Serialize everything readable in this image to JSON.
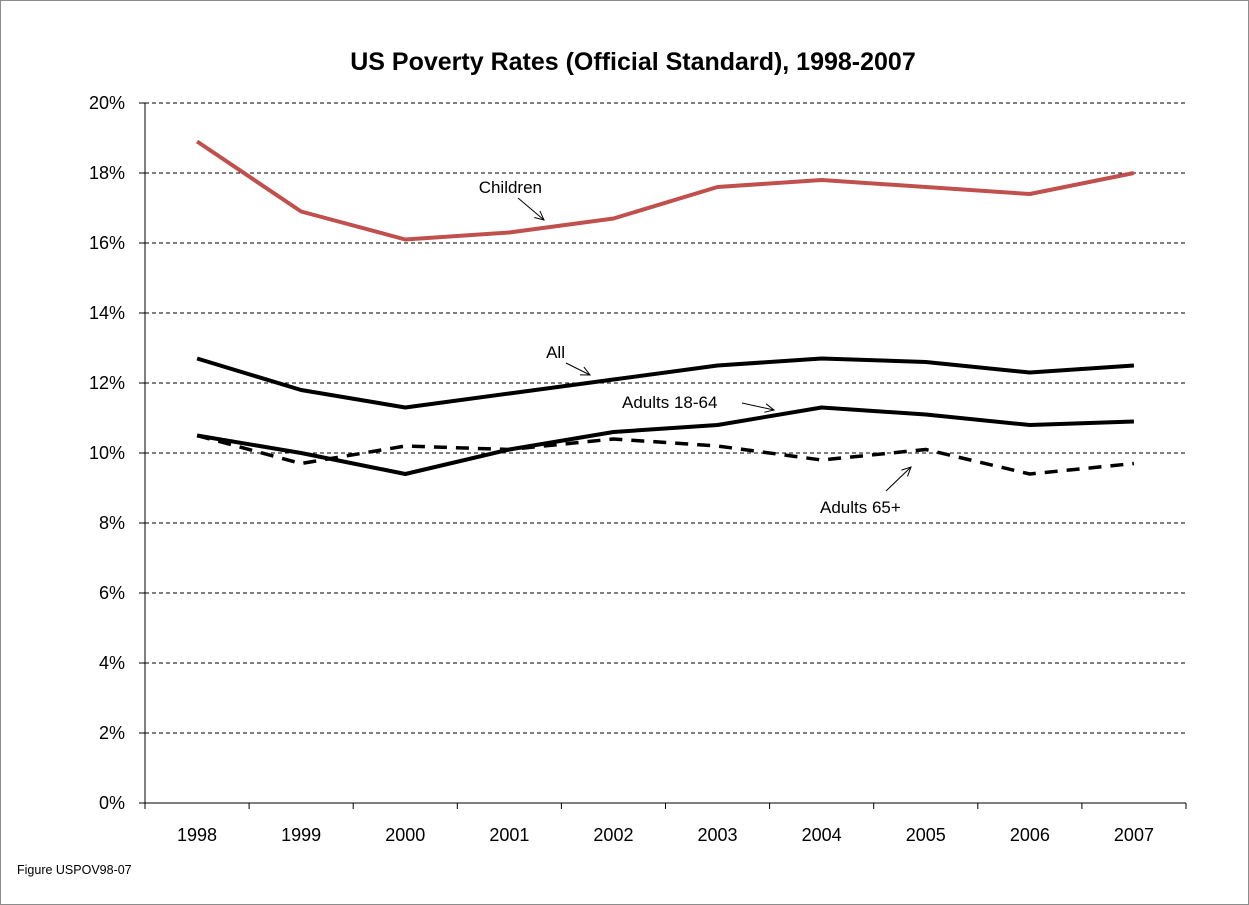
{
  "figure_label": "Figure USPOV98-07",
  "chart_data": {
    "type": "line",
    "title": "US Poverty Rates (Official Standard), 1998-2007",
    "xlabel": "",
    "ylabel": "",
    "categories": [
      "1998",
      "1999",
      "2000",
      "2001",
      "2002",
      "2003",
      "2004",
      "2005",
      "2006",
      "2007"
    ],
    "ylim": [
      0,
      20
    ],
    "yticks": [
      0,
      2,
      4,
      6,
      8,
      10,
      12,
      14,
      16,
      18,
      20
    ],
    "ytick_labels": [
      "0%",
      "2%",
      "4%",
      "6%",
      "8%",
      "10%",
      "12%",
      "14%",
      "16%",
      "18%",
      "20%"
    ],
    "grid": "horizontal dashed",
    "legend": "none",
    "series": [
      {
        "name": "Children",
        "color": "#c0504d",
        "style": "solid",
        "values": [
          18.9,
          16.9,
          16.1,
          16.3,
          16.7,
          17.6,
          17.8,
          17.6,
          17.4,
          18.0
        ]
      },
      {
        "name": "All",
        "color": "#000000",
        "style": "solid",
        "values": [
          12.7,
          11.8,
          11.3,
          11.7,
          12.1,
          12.5,
          12.7,
          12.6,
          12.3,
          12.5
        ]
      },
      {
        "name": "Adults 18-64",
        "color": "#000000",
        "style": "solid",
        "values": [
          10.5,
          10.0,
          9.4,
          10.1,
          10.6,
          10.8,
          11.3,
          11.1,
          10.8,
          10.9
        ]
      },
      {
        "name": "Adults 65+",
        "color": "#000000",
        "style": "dashed",
        "values": [
          10.5,
          9.7,
          10.2,
          10.1,
          10.4,
          10.2,
          9.8,
          10.1,
          9.4,
          9.7
        ]
      }
    ]
  }
}
